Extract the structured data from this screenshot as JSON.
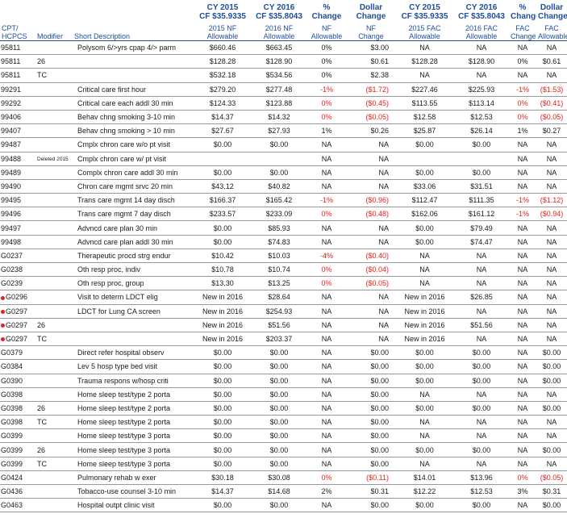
{
  "header": {
    "groups": [
      {
        "line1": "CY 2015",
        "line2": "CF $35.9335"
      },
      {
        "line1": "CY 2016",
        "line2": "CF $35.8043"
      },
      {
        "line1": "%",
        "line2": "Change"
      },
      {
        "line1": "Dollar",
        "line2": "Change"
      },
      {
        "line1": "CY 2015",
        "line2": "CF $35.9335"
      },
      {
        "line1": "CY 2016",
        "line2": "CF $35.8043"
      },
      {
        "line1": "%",
        "line2": "Change"
      },
      {
        "line1": "Dollar",
        "line2": "Change"
      }
    ],
    "columns": [
      {
        "line1": "CPT/",
        "line2": "HCPCS"
      },
      {
        "line1": "",
        "line2": "Modifier"
      },
      {
        "line1": "",
        "line2": "Short Description"
      },
      {
        "line1": "2015 NF",
        "line2": "Allowable"
      },
      {
        "line1": "2016 NF",
        "line2": "Allowable"
      },
      {
        "line1": "NF",
        "line2": "Allowable"
      },
      {
        "line1": "NF",
        "line2": "Change"
      },
      {
        "line1": "2015 FAC",
        "line2": "Allowable"
      },
      {
        "line1": "2016 FAC",
        "line2": "Allowable"
      },
      {
        "line1": "FAC",
        "line2": "Change"
      },
      {
        "line1": "FAC",
        "line2": "Allowable"
      }
    ]
  },
  "rows": [
    {
      "code": "95811",
      "new": false,
      "mod": "",
      "desc": "Polysom 6/>yrs cpap 4/> parm",
      "nf15": "$660.46",
      "nf16": "$663.45",
      "nfpct": "0%",
      "nfdol": "$3.00",
      "fac15": "NA",
      "fac16": "NA",
      "facpct": "NA",
      "facdol": "NA"
    },
    {
      "code": "95811",
      "new": false,
      "mod": "26",
      "desc": "",
      "nf15": "$128.28",
      "nf16": "$128.90",
      "nfpct": "0%",
      "nfdol": "$0.61",
      "fac15": "$128.28",
      "fac16": "$128.90",
      "facpct": "0%",
      "facdol": "$0.61"
    },
    {
      "code": "95811",
      "new": false,
      "mod": "TC",
      "desc": "",
      "nf15": "$532.18",
      "nf16": "$534.56",
      "nfpct": "0%",
      "nfdol": "$2.38",
      "fac15": "NA",
      "fac16": "NA",
      "facpct": "NA",
      "facdol": "NA"
    },
    {
      "code": "99291",
      "new": false,
      "mod": "",
      "desc": "Critical care first hour",
      "nf15": "$279.20",
      "nf16": "$277.48",
      "nfpct": "-1%",
      "nfdol": "($1.72)",
      "fac15": "$227.46",
      "fac16": "$225.93",
      "facpct": "-1%",
      "facdol": "($1.53)"
    },
    {
      "code": "99292",
      "new": false,
      "mod": "",
      "desc": "Critical care each addl 30  min",
      "nf15": "$124.33",
      "nf16": "$123.88",
      "nfpct": "0%",
      "nfdol": "($0.45)",
      "fac15": "$113.55",
      "fac16": "$113.14",
      "facpct": "0%",
      "facdol": "($0.41)"
    },
    {
      "code": "99406",
      "new": false,
      "mod": "",
      "desc": "Behav chng smoking 3-10 min",
      "nf15": "$14.37",
      "nf16": "$14.32",
      "nfpct": "0%",
      "nfdol": "($0.05)",
      "fac15": "$12.58",
      "fac16": "$12.53",
      "facpct": "0%",
      "facdol": "($0.05)"
    },
    {
      "code": "99407",
      "new": false,
      "mod": "",
      "desc": "Behav chng smoking > 10 min",
      "nf15": "$27.67",
      "nf16": "$27.93",
      "nfpct": "1%",
      "nfdol": "$0.26",
      "fac15": "$25.87",
      "fac16": "$26.14",
      "facpct": "1%",
      "facdol": "$0.27"
    },
    {
      "code": "99487",
      "new": false,
      "mod": "",
      "desc": "Cmplx chron care w/o pt visit",
      "nf15": "$0.00",
      "nf16": "$0.00",
      "nfpct": "NA",
      "nfdol": "NA",
      "fac15": "$0.00",
      "fac16": "$0.00",
      "facpct": "NA",
      "facdol": "NA"
    },
    {
      "code": "99488",
      "new": false,
      "mod": "Deleted 2015",
      "desc": "Cmplx chron care w/ pt visit",
      "nf15": "",
      "nf16": "",
      "nfpct": "NA",
      "nfdol": "NA",
      "fac15": "",
      "fac16": "",
      "facpct": "NA",
      "facdol": "NA"
    },
    {
      "code": "99489",
      "new": false,
      "mod": "",
      "desc": "Complx chron care addl 30 min",
      "nf15": "$0.00",
      "nf16": "$0.00",
      "nfpct": "NA",
      "nfdol": "NA",
      "fac15": "$0.00",
      "fac16": "$0.00",
      "facpct": "NA",
      "facdol": "NA"
    },
    {
      "code": "99490",
      "new": false,
      "mod": "",
      "desc": "Chron care mgmt srvc 20 min",
      "nf15": "$43.12",
      "nf16": "$40.82",
      "nfpct": "NA",
      "nfdol": "NA",
      "fac15": "$33.06",
      "fac16": "$31.51",
      "facpct": "NA",
      "facdol": "NA"
    },
    {
      "code": "99495",
      "new": false,
      "mod": "",
      "desc": "Trans care mgmt 14 day disch",
      "nf15": "$166.37",
      "nf16": "$165.42",
      "nfpct": "-1%",
      "nfdol": "($0.96)",
      "fac15": "$112.47",
      "fac16": "$111.35",
      "facpct": "-1%",
      "facdol": "($1.12)"
    },
    {
      "code": "99496",
      "new": false,
      "mod": "",
      "desc": "Trans care mgmt 7 day disch",
      "nf15": "$233.57",
      "nf16": "$233.09",
      "nfpct": "0%",
      "nfdol": "($0.48)",
      "fac15": "$162.06",
      "fac16": "$161.12",
      "facpct": "-1%",
      "facdol": "($0.94)"
    },
    {
      "code": "99497",
      "new": false,
      "mod": "",
      "desc": "Advncd care plan 30 min",
      "nf15": "$0.00",
      "nf16": "$85.93",
      "nfpct": "NA",
      "nfdol": "NA",
      "fac15": "$0.00",
      "fac16": "$79.49",
      "facpct": "NA",
      "facdol": "NA"
    },
    {
      "code": "99498",
      "new": false,
      "mod": "",
      "desc": "Advncd care plan addl 30 min",
      "nf15": "$0.00",
      "nf16": "$74.83",
      "nfpct": "NA",
      "nfdol": "NA",
      "fac15": "$0.00",
      "fac16": "$74.47",
      "facpct": "NA",
      "facdol": "NA"
    },
    {
      "code": "G0237",
      "new": false,
      "mod": "",
      "desc": "Therapeutic procd strg endur",
      "nf15": "$10.42",
      "nf16": "$10.03",
      "nfpct": "-4%",
      "nfdol": "($0.40)",
      "fac15": "NA",
      "fac16": "NA",
      "facpct": "NA",
      "facdol": "NA"
    },
    {
      "code": "G0238",
      "new": false,
      "mod": "",
      "desc": "Oth resp proc, indiv",
      "nf15": "$10.78",
      "nf16": "$10.74",
      "nfpct": "0%",
      "nfdol": "($0.04)",
      "fac15": "NA",
      "fac16": "NA",
      "facpct": "NA",
      "facdol": "NA"
    },
    {
      "code": "G0239",
      "new": false,
      "mod": "",
      "desc": "Oth resp proc, group",
      "nf15": "$13.30",
      "nf16": "$13.25",
      "nfpct": "0%",
      "nfdol": "($0.05)",
      "fac15": "NA",
      "fac16": "NA",
      "facpct": "NA",
      "facdol": "NA"
    },
    {
      "code": "G0296",
      "new": true,
      "mod": "",
      "desc": "Visit to determ LDCT elig",
      "nf15": "New in 2016",
      "nf16": "$28.64",
      "nfpct": "NA",
      "nfdol": "NA",
      "fac15": "New in 2016",
      "fac16": "$26.85",
      "facpct": "NA",
      "facdol": "NA"
    },
    {
      "code": "G0297",
      "new": true,
      "mod": "",
      "desc": "LDCT for Lung CA screen",
      "nf15": "New in 2016",
      "nf16": "$254.93",
      "nfpct": "NA",
      "nfdol": "NA",
      "fac15": "New in 2016",
      "fac16": "NA",
      "facpct": "NA",
      "facdol": "NA"
    },
    {
      "code": "G0297",
      "new": true,
      "mod": "26",
      "desc": "",
      "nf15": "New in 2016",
      "nf16": "$51.56",
      "nfpct": "NA",
      "nfdol": "NA",
      "fac15": "New in 2016",
      "fac16": "$51.56",
      "facpct": "NA",
      "facdol": "NA"
    },
    {
      "code": "G0297",
      "new": true,
      "mod": "TC",
      "desc": "",
      "nf15": "New in 2016",
      "nf16": "$203.37",
      "nfpct": "NA",
      "nfdol": "NA",
      "fac15": "New in 2016",
      "fac16": "NA",
      "facpct": "NA",
      "facdol": "NA"
    },
    {
      "code": "G0379",
      "new": false,
      "mod": "",
      "desc": "Direct refer hospital observ",
      "nf15": "$0.00",
      "nf16": "$0.00",
      "nfpct": "NA",
      "nfdol": "$0.00",
      "fac15": "$0.00",
      "fac16": "$0.00",
      "facpct": "NA",
      "facdol": "$0.00"
    },
    {
      "code": "G0384",
      "new": false,
      "mod": "",
      "desc": "Lev 5 hosp type bed visit",
      "nf15": "$0.00",
      "nf16": "$0.00",
      "nfpct": "NA",
      "nfdol": "$0.00",
      "fac15": "$0.00",
      "fac16": "$0.00",
      "facpct": "NA",
      "facdol": "$0.00"
    },
    {
      "code": "G0390",
      "new": false,
      "mod": "",
      "desc": "Trauma respons w/hosp criti",
      "nf15": "$0.00",
      "nf16": "$0.00",
      "nfpct": "NA",
      "nfdol": "$0.00",
      "fac15": "$0.00",
      "fac16": "$0.00",
      "facpct": "NA",
      "facdol": "$0.00"
    },
    {
      "code": "G0398",
      "new": false,
      "mod": "",
      "desc": "Home sleep test/type 2 porta",
      "nf15": "$0.00",
      "nf16": "$0.00",
      "nfpct": "NA",
      "nfdol": "$0.00",
      "fac15": "NA",
      "fac16": "NA",
      "facpct": "NA",
      "facdol": "NA"
    },
    {
      "code": "G0398",
      "new": false,
      "mod": "26",
      "desc": "Home sleep test/type 2 porta",
      "nf15": "$0.00",
      "nf16": "$0.00",
      "nfpct": "NA",
      "nfdol": "$0.00",
      "fac15": "$0.00",
      "fac16": "$0.00",
      "facpct": "NA",
      "facdol": "$0.00"
    },
    {
      "code": "G0398",
      "new": false,
      "mod": "TC",
      "desc": "Home sleep test/type 2 porta",
      "nf15": "$0.00",
      "nf16": "$0.00",
      "nfpct": "NA",
      "nfdol": "$0.00",
      "fac15": "NA",
      "fac16": "NA",
      "facpct": "NA",
      "facdol": "NA"
    },
    {
      "code": "G0399",
      "new": false,
      "mod": "",
      "desc": "Home sleep test/type 3 porta",
      "nf15": "$0.00",
      "nf16": "$0.00",
      "nfpct": "NA",
      "nfdol": "$0.00",
      "fac15": "NA",
      "fac16": "NA",
      "facpct": "NA",
      "facdol": "NA"
    },
    {
      "code": "G0399",
      "new": false,
      "mod": "26",
      "desc": "Home sleep test/type 3 porta",
      "nf15": "$0.00",
      "nf16": "$0.00",
      "nfpct": "NA",
      "nfdol": "$0.00",
      "fac15": "$0.00",
      "fac16": "$0.00",
      "facpct": "NA",
      "facdol": "$0.00"
    },
    {
      "code": "G0399",
      "new": false,
      "mod": "TC",
      "desc": "Home sleep test/type 3 porta",
      "nf15": "$0.00",
      "nf16": "$0.00",
      "nfpct": "NA",
      "nfdol": "$0.00",
      "fac15": "NA",
      "fac16": "NA",
      "facpct": "NA",
      "facdol": "NA"
    },
    {
      "code": "G0424",
      "new": false,
      "mod": "",
      "desc": "Pulmonary rehab w exer",
      "nf15": "$30.18",
      "nf16": "$30.08",
      "nfpct": "0%",
      "nfdol": "($0.11)",
      "fac15": "$14.01",
      "fac16": "$13.96",
      "facpct": "0%",
      "facdol": "($0.05)"
    },
    {
      "code": "G0436",
      "new": false,
      "mod": "",
      "desc": "Tobacco-use counsel 3-10 min",
      "nf15": "$14.37",
      "nf16": "$14.68",
      "nfpct": "2%",
      "nfdol": "$0.31",
      "fac15": "$12.22",
      "fac16": "$12.53",
      "facpct": "3%",
      "facdol": "$0.31"
    },
    {
      "code": "G0463",
      "new": false,
      "mod": "",
      "desc": "Hospital outpt clinic visit",
      "nf15": "$0.00",
      "nf16": "$0.00",
      "nfpct": "NA",
      "nfdol": "$0.00",
      "fac15": "$0.00",
      "fac16": "$0.00",
      "facpct": "NA",
      "facdol": "$0.00"
    }
  ],
  "colors": {
    "header_blue": "#1f4e9c",
    "negative_red": "#e2231a",
    "new_marker_red": "#e2231a"
  }
}
